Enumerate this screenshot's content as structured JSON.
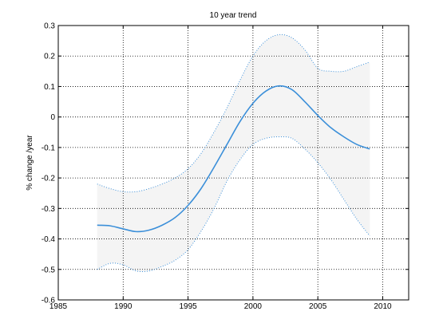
{
  "chart_data": {
    "type": "line",
    "title": "10 year trend",
    "xlabel": "",
    "ylabel": "% change /year",
    "xlim": [
      1985,
      2012
    ],
    "ylim": [
      -0.6,
      0.3
    ],
    "xticks": [
      1985,
      1990,
      1995,
      2000,
      2005,
      2010
    ],
    "xtick_labels": [
      "1985",
      "1990",
      "1995",
      "2000",
      "2005",
      "2010"
    ],
    "yticks": [
      0.3,
      0.2,
      0.1,
      0,
      -0.1,
      -0.2,
      -0.3,
      -0.4,
      -0.5,
      -0.6
    ],
    "ytick_labels": [
      "0.3",
      "0.2",
      "0.1",
      "0",
      "-0.1",
      "-0.2",
      "-0.3",
      "-0.4",
      "-0.5",
      "-0.6"
    ],
    "grid": true,
    "colors": {
      "trend_line": "#3b8fd9",
      "band_line": "#3b8fd9",
      "band_fill": "#f4f4f4",
      "axes": "#000000",
      "grid": "#000000"
    },
    "x": [
      1988,
      1989,
      1990,
      1991,
      1992,
      1993,
      1994,
      1995,
      1996,
      1997,
      1998,
      1999,
      2000,
      2001,
      2002,
      2003,
      2004,
      2005,
      2006,
      2007,
      2008,
      2009
    ],
    "series": [
      {
        "role": "trend",
        "style": "solid",
        "values": [
          -0.355,
          -0.357,
          -0.367,
          -0.376,
          -0.371,
          -0.355,
          -0.33,
          -0.29,
          -0.235,
          -0.165,
          -0.09,
          -0.015,
          0.045,
          0.085,
          0.102,
          0.09,
          0.05,
          0.005,
          -0.035,
          -0.065,
          -0.09,
          -0.105
        ]
      },
      {
        "role": "upper-bound",
        "style": "dotted",
        "values": [
          -0.22,
          -0.235,
          -0.245,
          -0.245,
          -0.235,
          -0.22,
          -0.2,
          -0.17,
          -0.12,
          -0.05,
          0.03,
          0.12,
          0.2,
          0.25,
          0.27,
          0.26,
          0.22,
          0.16,
          0.15,
          0.15,
          0.165,
          0.18
        ]
      },
      {
        "role": "lower-bound",
        "style": "dotted",
        "values": [
          -0.5,
          -0.48,
          -0.485,
          -0.505,
          -0.505,
          -0.49,
          -0.47,
          -0.435,
          -0.375,
          -0.3,
          -0.21,
          -0.14,
          -0.09,
          -0.07,
          -0.065,
          -0.07,
          -0.105,
          -0.15,
          -0.205,
          -0.27,
          -0.335,
          -0.39
        ]
      }
    ]
  }
}
